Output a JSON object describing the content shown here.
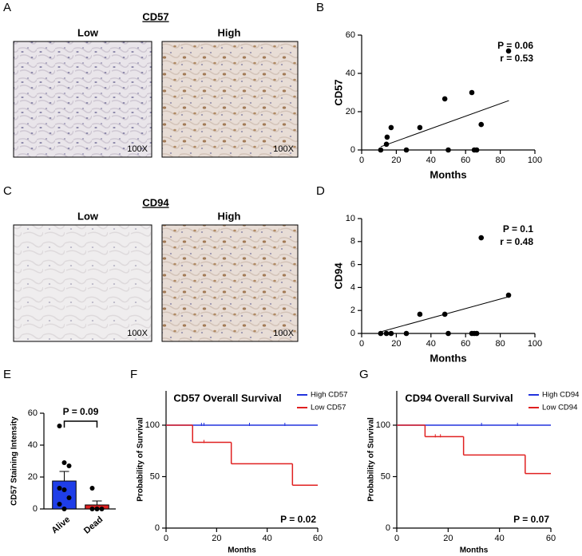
{
  "panel_letters": [
    "A",
    "B",
    "C",
    "D",
    "E",
    "F",
    "G"
  ],
  "image_panels": [
    {
      "title": "CD57",
      "labels": [
        "Low",
        "High"
      ],
      "magnification": "100X"
    },
    {
      "title": "CD94",
      "labels": [
        "Low",
        "High"
      ],
      "magnification": "100X"
    }
  ],
  "chart_data": [
    {
      "type": "scatter",
      "ylabel": "CD57",
      "xlabel": "Months",
      "annotations": [
        "P = 0.06",
        "r = 0.53"
      ],
      "color": "#000000",
      "x": [
        11,
        14.3,
        14.7,
        17,
        25.8,
        33.6,
        48,
        50,
        63.6,
        65,
        66.4,
        69,
        84.8
      ],
      "values": [
        0,
        3,
        6.7,
        11.7,
        0,
        11.7,
        26.7,
        0,
        30,
        0,
        0,
        13.3,
        51.7
      ],
      "trendline": {
        "x": [
          11,
          85
        ],
        "values": [
          1.7,
          25.8
        ]
      },
      "xlim": [
        0,
        100
      ],
      "xticks": [
        0,
        20,
        40,
        60,
        80,
        100
      ],
      "ylim": [
        0,
        60
      ],
      "yticks": [
        0,
        20,
        40,
        60
      ]
    },
    {
      "type": "scatter",
      "ylabel": "CD94",
      "xlabel": "Months",
      "annotations": [
        "P = 0.1",
        "r = 0.48"
      ],
      "color": "#000000",
      "x": [
        11,
        14.3,
        17,
        25.8,
        33.6,
        48,
        50,
        63.6,
        65,
        66.4,
        69,
        84.8
      ],
      "values": [
        0,
        0,
        0,
        0,
        1.67,
        1.67,
        0,
        0,
        0,
        0,
        8.33,
        3.33
      ],
      "trendline": {
        "x": [
          11,
          85
        ],
        "values": [
          0.14,
          3.2
        ]
      },
      "xlim": [
        0,
        100
      ],
      "xticks": [
        0,
        20,
        40,
        60,
        80,
        100
      ],
      "ylim": [
        0,
        10
      ],
      "yticks": [
        0,
        2,
        4,
        6,
        8,
        10
      ]
    },
    {
      "type": "bar",
      "ylabel": "CD57 Staining Intensity",
      "annotations": [
        "P = 0.09"
      ],
      "categories": [
        "Alive",
        "Dead"
      ],
      "values": [
        17.5,
        2.5
      ],
      "errors": [
        6,
        2.5
      ],
      "colors": [
        "#1f3ee8",
        "#e02020"
      ],
      "points": [
        [
          52,
          29,
          27,
          13,
          12,
          7,
          3,
          0
        ],
        [
          13,
          0,
          0,
          0,
          0
        ]
      ],
      "ylim": [
        0,
        60
      ],
      "yticks": [
        0,
        20,
        40,
        60
      ]
    },
    {
      "type": "km",
      "title": "CD57 Overall Survival",
      "ylabel": "Probability of Survival",
      "xlabel": "Months",
      "annotations": [
        "P = 0.02"
      ],
      "series": [
        {
          "name": "High CD57",
          "color": "#2233dd",
          "x": [
            0,
            60
          ],
          "values": [
            100,
            100
          ],
          "censored": [
            14,
            15,
            33,
            47
          ]
        },
        {
          "name": "Low CD57",
          "color": "#e02020",
          "x": [
            0,
            10.5,
            25.8,
            50,
            60
          ],
          "values": [
            100,
            83.3,
            62.5,
            41.7,
            41.7
          ],
          "censored": [
            15
          ]
        }
      ],
      "xlim": [
        0,
        60
      ],
      "xticks": [
        0,
        20,
        40,
        60
      ],
      "ylim": [
        0,
        100
      ],
      "yticks": [
        0,
        50,
        100
      ]
    },
    {
      "type": "km",
      "title": "CD94 Overall Survival",
      "ylabel": "Probability of Survival",
      "xlabel": "Months",
      "annotations": [
        "P = 0.07"
      ],
      "series": [
        {
          "name": "High CD94",
          "color": "#2233dd",
          "x": [
            0,
            60
          ],
          "values": [
            100,
            100
          ],
          "censored": [
            33,
            47
          ]
        },
        {
          "name": "Low CD94",
          "color": "#e02020",
          "x": [
            0,
            11,
            26,
            50,
            60
          ],
          "values": [
            100,
            88.9,
            71,
            53,
            53
          ],
          "censored": [
            15,
            17
          ]
        }
      ],
      "xlim": [
        0,
        60
      ],
      "xticks": [
        0,
        20,
        40,
        60
      ],
      "ylim": [
        0,
        100
      ],
      "yticks": [
        0,
        50,
        100
      ]
    }
  ]
}
